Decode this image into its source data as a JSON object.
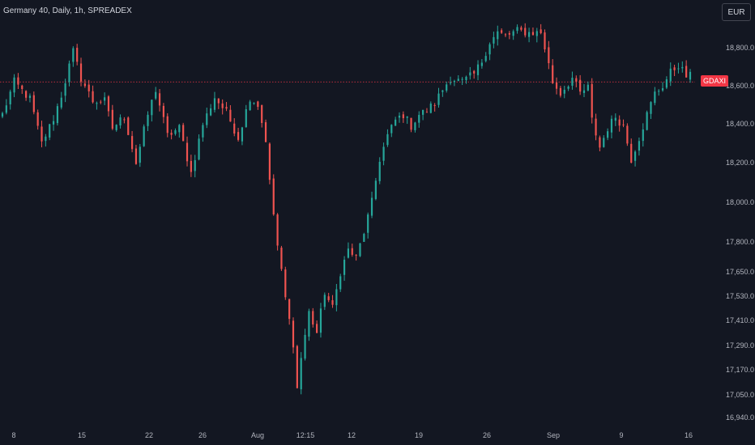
{
  "header": {
    "title": "Germany 40, Daily, 1h, SPREADEX"
  },
  "currency": {
    "label": "EUR"
  },
  "price_tag": {
    "label": "GDAXI",
    "color": "#f23645"
  },
  "colors": {
    "up": "#26a69a",
    "down": "#ef5350",
    "background": "#131722",
    "reference_line": "#f23645"
  },
  "chart_data": {
    "type": "candlestick",
    "title": "Germany 40, Daily, 1h, SPREADEX",
    "ylabel": "",
    "xlabel": "",
    "y_scale": "log",
    "ylim": [
      16880,
      19200
    ],
    "reference_line": 18620,
    "y_ticks": [
      "18,800.0",
      "18,600.0",
      "18,400.0",
      "18,200.0",
      "18,000.0",
      "17,800.0",
      "17,650.0",
      "17,530.0",
      "17,410.0",
      "17,290.0",
      "17,170.0",
      "17,050.0",
      "16,940.0"
    ],
    "x_ticks": [
      "8",
      "15",
      "22",
      "26",
      "Aug",
      "12:15",
      "12",
      "19",
      "26",
      "Sep",
      "9",
      "16"
    ],
    "close_path": [
      [
        0,
        18450
      ],
      [
        3,
        18620
      ],
      [
        7,
        18530
      ],
      [
        10,
        18300
      ],
      [
        13,
        18430
      ],
      [
        15,
        18550
      ],
      [
        18,
        18780
      ],
      [
        20,
        18640
      ],
      [
        23,
        18520
      ],
      [
        26,
        18520
      ],
      [
        28,
        18380
      ],
      [
        31,
        18440
      ],
      [
        34,
        18200
      ],
      [
        37,
        18450
      ],
      [
        39,
        18580
      ],
      [
        42,
        18340
      ],
      [
        45,
        18380
      ],
      [
        48,
        18150
      ],
      [
        51,
        18400
      ],
      [
        54,
        18540
      ],
      [
        57,
        18460
      ],
      [
        60,
        18330
      ],
      [
        63,
        18540
      ],
      [
        65,
        18500
      ],
      [
        67,
        18320
      ],
      [
        68,
        18100
      ],
      [
        70,
        17780
      ],
      [
        72,
        17520
      ],
      [
        74,
        17300
      ],
      [
        75,
        17080
      ],
      [
        76,
        17230
      ],
      [
        78,
        17450
      ],
      [
        80,
        17350
      ],
      [
        82,
        17550
      ],
      [
        84,
        17470
      ],
      [
        86,
        17650
      ],
      [
        88,
        17760
      ],
      [
        90,
        17720
      ],
      [
        92,
        17850
      ],
      [
        94,
        18000
      ],
      [
        96,
        18220
      ],
      [
        98,
        18340
      ],
      [
        100,
        18420
      ],
      [
        102,
        18450
      ],
      [
        104,
        18390
      ],
      [
        106,
        18450
      ],
      [
        108,
        18470
      ],
      [
        110,
        18510
      ],
      [
        112,
        18580
      ],
      [
        114,
        18640
      ],
      [
        117,
        18620
      ],
      [
        120,
        18660
      ],
      [
        122,
        18730
      ],
      [
        124,
        18830
      ],
      [
        126,
        18880
      ],
      [
        128,
        18860
      ],
      [
        131,
        18890
      ],
      [
        134,
        18880
      ],
      [
        137,
        18880
      ],
      [
        138,
        18800
      ],
      [
        140,
        18620
      ],
      [
        142,
        18560
      ],
      [
        145,
        18640
      ],
      [
        147,
        18560
      ],
      [
        149,
        18590
      ],
      [
        150,
        18420
      ],
      [
        152,
        18280
      ],
      [
        154,
        18380
      ],
      [
        156,
        18440
      ],
      [
        158,
        18390
      ],
      [
        160,
        18220
      ],
      [
        162,
        18330
      ],
      [
        164,
        18450
      ],
      [
        166,
        18560
      ],
      [
        168,
        18600
      ],
      [
        170,
        18670
      ],
      [
        172,
        18710
      ],
      [
        174,
        18650
      ],
      [
        175,
        18650
      ]
    ]
  }
}
